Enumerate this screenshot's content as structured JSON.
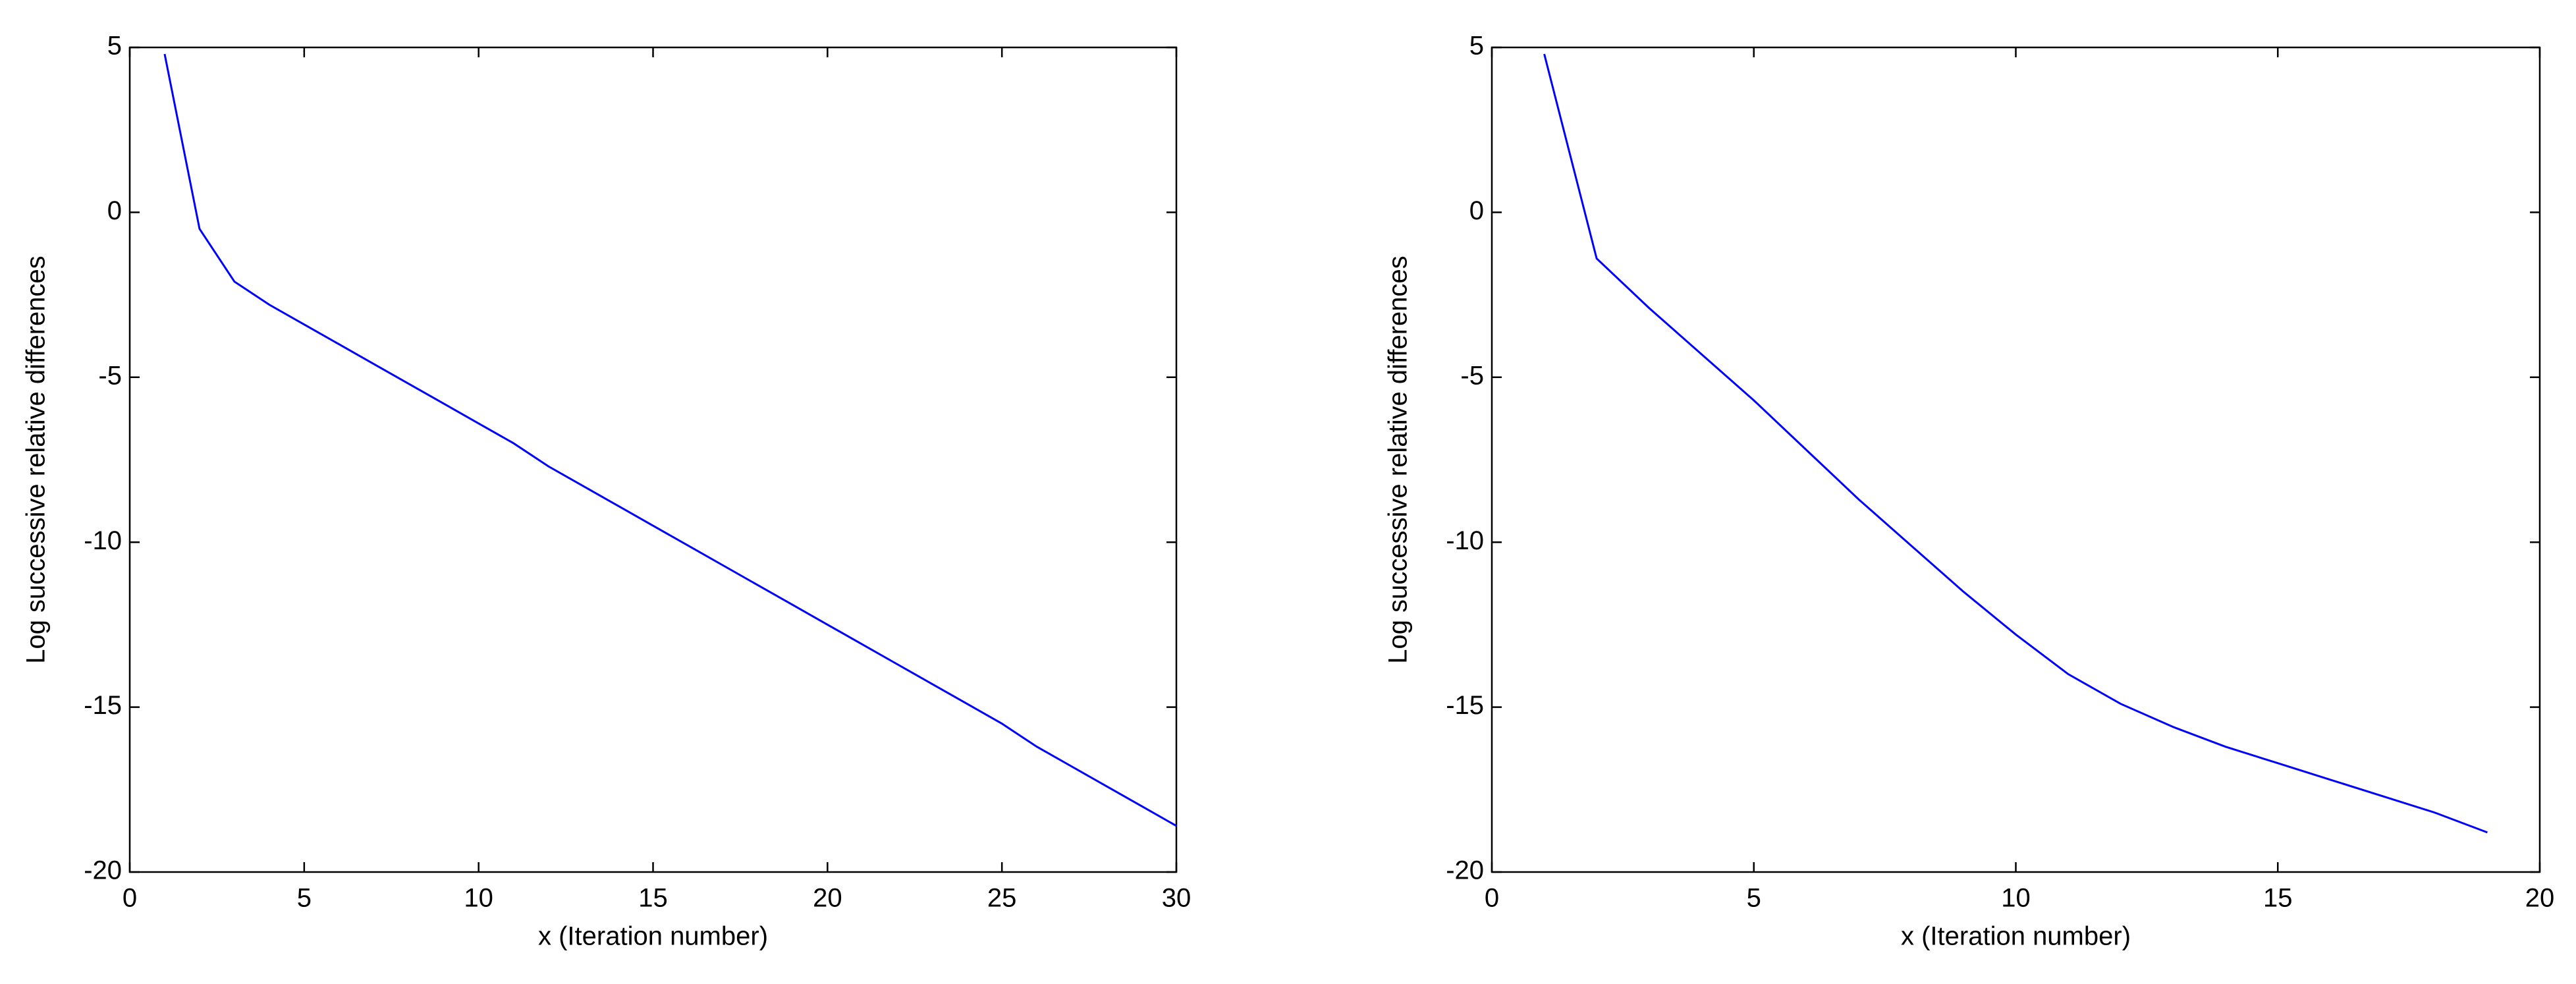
{
  "chart_data": [
    {
      "type": "line",
      "xlabel": "x (Iteration number)",
      "ylabel": "Log successive relative differences",
      "xlim": [
        0,
        30
      ],
      "xticks": [
        0,
        5,
        10,
        15,
        20,
        25,
        30
      ],
      "ylim": [
        -20,
        5
      ],
      "yticks": [
        -20,
        -15,
        -10,
        -5,
        0,
        5
      ],
      "series": [
        {
          "color": "#0000ff",
          "x": [
            1,
            2,
            3,
            4,
            5,
            6,
            7,
            8,
            9,
            10,
            11,
            12,
            13,
            14,
            15,
            16,
            17,
            18,
            19,
            20,
            21,
            22,
            23,
            24,
            25,
            26,
            27,
            28,
            29,
            30
          ],
          "values": [
            4.8,
            -0.5,
            -2.1,
            -2.8,
            -3.4,
            -4.0,
            -4.6,
            -5.2,
            -5.8,
            -6.4,
            -7.0,
            -7.7,
            -8.3,
            -8.9,
            -9.5,
            -10.1,
            -10.7,
            -11.3,
            -11.9,
            -12.5,
            -13.1,
            -13.7,
            -14.3,
            -14.9,
            -15.5,
            -16.2,
            -16.8,
            -17.4,
            -18.0,
            -18.6
          ]
        }
      ]
    },
    {
      "type": "line",
      "xlabel": "x (Iteration number)",
      "ylabel": "Log successive relative differences",
      "xlim": [
        0,
        20
      ],
      "xticks": [
        0,
        5,
        10,
        15,
        20
      ],
      "ylim": [
        -20,
        5
      ],
      "yticks": [
        -20,
        -15,
        -10,
        -5,
        0,
        5
      ],
      "series": [
        {
          "color": "#0000ff",
          "x": [
            1,
            2,
            3,
            4,
            5,
            6,
            7,
            8,
            9,
            10,
            11,
            12,
            13,
            14,
            15,
            16,
            17,
            18,
            19
          ],
          "values": [
            4.8,
            -1.4,
            -2.9,
            -4.3,
            -5.7,
            -7.2,
            -8.7,
            -10.1,
            -11.5,
            -12.8,
            -14.0,
            -14.9,
            -15.6,
            -16.2,
            -16.7,
            -17.2,
            -17.7,
            -18.2,
            -18.8
          ]
        }
      ]
    }
  ]
}
